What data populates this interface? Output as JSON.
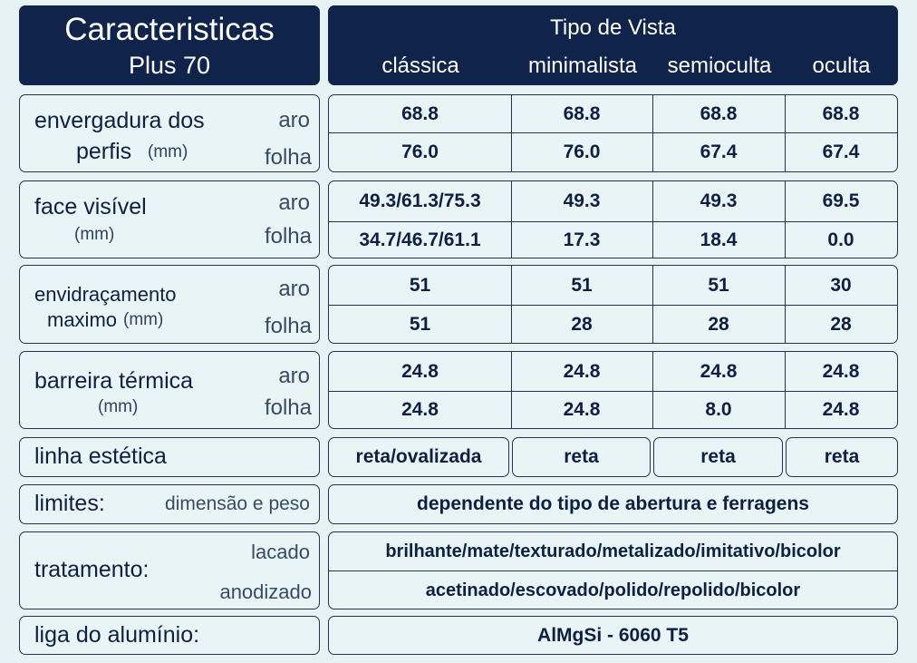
{
  "header": {
    "title": "Caracteristicas",
    "subtitle": "Plus 70",
    "group_title": "Tipo de Vista",
    "columns": [
      "clássica",
      "minimalista",
      "semioculta",
      "oculta"
    ]
  },
  "rows": [
    {
      "label_line1": "envergadura dos",
      "label_line2": "perfis",
      "unit": "(mm)",
      "sub1": "aro",
      "sub2": "folha",
      "values1": [
        "68.8",
        "68.8",
        "68.8",
        "68.8"
      ],
      "values2": [
        "76.0",
        "76.0",
        "67.4",
        "67.4"
      ]
    },
    {
      "label_line1": "face visível",
      "unit": "(mm)",
      "sub1": "aro",
      "sub2": "folha",
      "values1": [
        "49.3/61.3/75.3",
        "49.3",
        "49.3",
        "69.5"
      ],
      "values2": [
        "34.7/46.7/61.1",
        "17.3",
        "18.4",
        "0.0"
      ]
    },
    {
      "label_line1": "envidraçamento",
      "label_line2": "maximo",
      "unit": "(mm)",
      "sub1": "aro",
      "sub2": "folha",
      "values1": [
        "51",
        "51",
        "51",
        "30"
      ],
      "values2": [
        "51",
        "28",
        "28",
        "28"
      ]
    },
    {
      "label_line1": "barreira térmica",
      "unit": "(mm)",
      "sub1": "aro",
      "sub2": "folha",
      "values1": [
        "24.8",
        "24.8",
        "24.8",
        "24.8"
      ],
      "values2": [
        "24.8",
        "24.8",
        "8.0",
        "24.8"
      ]
    }
  ],
  "linha": {
    "label": "linha estética",
    "values": [
      "reta/ovalizada",
      "reta",
      "reta",
      "reta"
    ]
  },
  "limites": {
    "label": "limites:",
    "sub": "dimensão e peso",
    "value": "dependente do tipo de abertura e ferragens"
  },
  "tratamento": {
    "label": "tratamento:",
    "sub1": "lacado",
    "sub2": "anodizado",
    "value1": "brilhante/mate/texturado/metalizado/imitativo/bicolor",
    "value2": "acetinado/escovado/polido/repolido/bicolor"
  },
  "liga": {
    "label": "liga do alumínio:",
    "value": "AlMgSi - 6060 T5"
  },
  "colors": {
    "header_bg": "#10234a",
    "cell_bg": "#e9f4f6",
    "border": "#22324f"
  }
}
